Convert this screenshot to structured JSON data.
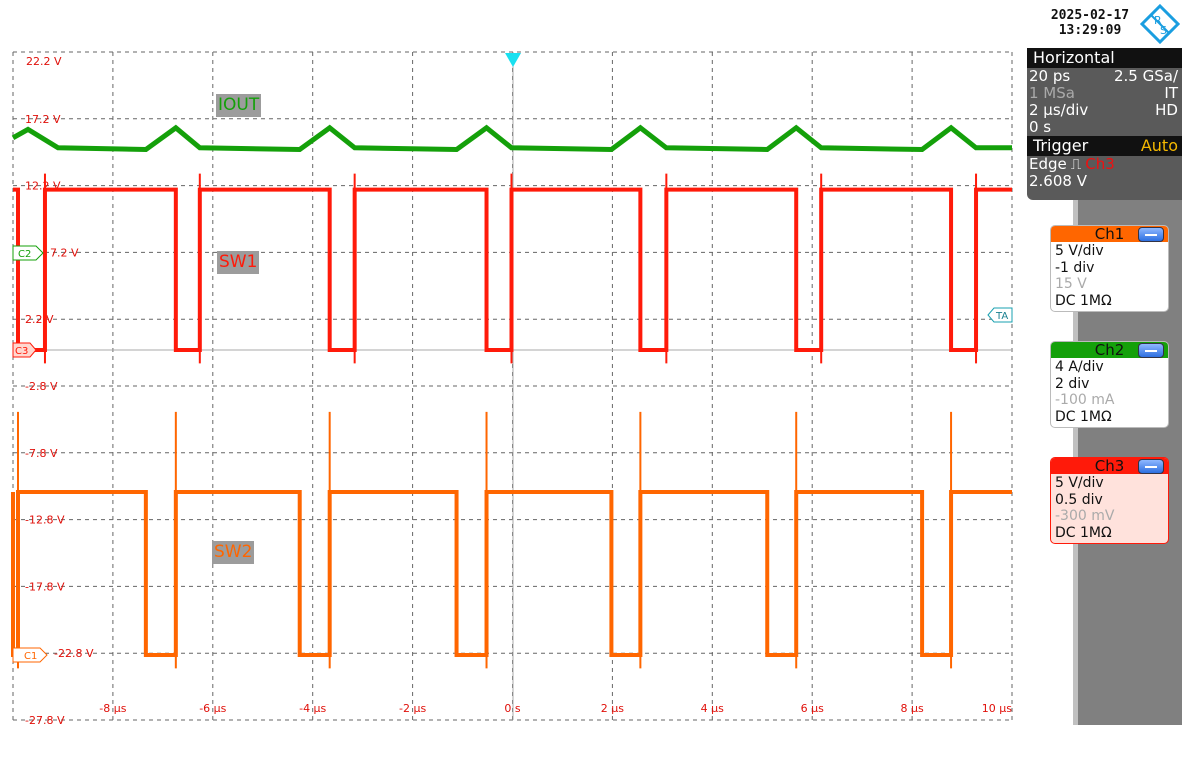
{
  "header": {
    "date": "2025-02-17",
    "time": "13:29:09",
    "logo_text": "R&S"
  },
  "horizontal": {
    "title": "Horizontal",
    "resolution": "20 ps",
    "sample_rate": "2.5 GSa/",
    "record_length": "1 MSa",
    "mode": "IT",
    "time_scale": "2 µs/div",
    "acq_mode": "HD",
    "position": "0 s"
  },
  "trigger": {
    "title": "Trigger",
    "mode": "Auto",
    "type": "Edge",
    "source": "Ch3",
    "level": "2.608 V",
    "marker": "TA"
  },
  "channels": [
    {
      "name": "Ch1",
      "scale": "5 V/div",
      "position": "-1 div",
      "offset": "15 V",
      "coupling": "DC 1MΩ",
      "color": "#ff6600",
      "marker": "C1"
    },
    {
      "name": "Ch2",
      "scale": "4 A/div",
      "position": "2 div",
      "offset": "-100 mA",
      "coupling": "DC 1MΩ",
      "color": "#14a00a",
      "marker": "C2"
    },
    {
      "name": "Ch3",
      "scale": "5 V/div",
      "position": "0.5 div",
      "offset": "-300 mV",
      "coupling": "DC 1MΩ",
      "color": "#ff1a0a",
      "marker": "C3"
    }
  ],
  "chart_data": {
    "type": "line",
    "title": "",
    "xlim": [
      -10,
      10
    ],
    "x_unit": "µs",
    "grid": true,
    "y_tick_labels": [
      "22.2 V",
      "17.2 V",
      "12.2 V",
      "7.2 V",
      "2.2 V",
      "-2.8 V",
      "-7.8 V",
      "-12.8 V",
      "-17.8 V",
      "-22.8 V",
      "-27.8 V"
    ],
    "x_tick_labels": [
      "-8 µs",
      "-6 µs",
      "-4 µs",
      "-2 µs",
      "0 s",
      "2 µs",
      "4 µs",
      "6 µs",
      "8 µs",
      "10 µs"
    ],
    "series": [
      {
        "name": "IOUT",
        "channel": "Ch2",
        "unit": "A",
        "color": "#14a00a",
        "points": [
          [
            -10,
            6.9
          ],
          [
            -9.7,
            7.4
          ],
          [
            -9.1,
            6.3
          ],
          [
            -7.34,
            6.2
          ],
          [
            -6.74,
            7.5
          ],
          [
            -6.26,
            6.3
          ],
          [
            -4.26,
            6.2
          ],
          [
            -3.66,
            7.5
          ],
          [
            -3.16,
            6.3
          ],
          [
            -1.12,
            6.2
          ],
          [
            -0.52,
            7.5
          ],
          [
            -0.02,
            6.3
          ],
          [
            1.98,
            6.2
          ],
          [
            2.56,
            7.5
          ],
          [
            3.08,
            6.3
          ],
          [
            5.1,
            6.2
          ],
          [
            5.68,
            7.5
          ],
          [
            6.18,
            6.3
          ],
          [
            8.2,
            6.2
          ],
          [
            8.78,
            7.5
          ],
          [
            9.28,
            6.3
          ],
          [
            10,
            6.3
          ]
        ]
      },
      {
        "name": "SW1",
        "channel": "Ch3",
        "unit": "V",
        "color": "#ff1a0a",
        "high": 12.0,
        "low": 0.0,
        "low_intervals": [
          [
            -9.9,
            -9.36
          ],
          [
            -6.74,
            -6.26
          ],
          [
            -3.66,
            -3.16
          ],
          [
            -0.52,
            -0.02
          ],
          [
            2.56,
            3.08
          ],
          [
            5.68,
            6.18
          ],
          [
            8.78,
            9.28
          ]
        ]
      },
      {
        "name": "SW2",
        "channel": "Ch1",
        "unit": "V",
        "color": "#ff6600",
        "high": 12.2,
        "low": 0.0,
        "low_intervals": [
          [
            -10,
            -9.9
          ],
          [
            -7.34,
            -6.74
          ],
          [
            -4.26,
            -3.66
          ],
          [
            -1.12,
            -0.52
          ],
          [
            1.98,
            2.56
          ],
          [
            5.1,
            5.68
          ],
          [
            8.2,
            8.78
          ]
        ]
      }
    ]
  }
}
